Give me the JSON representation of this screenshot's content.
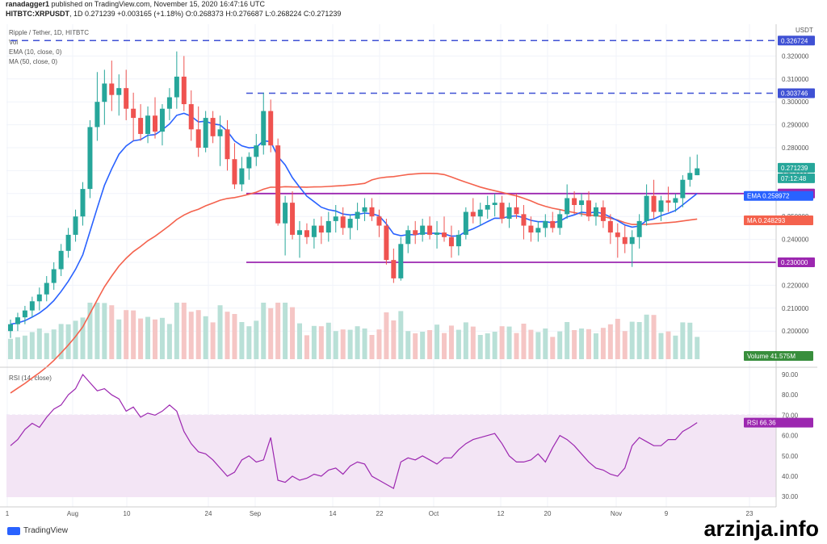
{
  "header": {
    "publisher": "ranadagger1",
    "published_text": "published on TradingView.com, November 15, 2020 16:47:16 UTC",
    "symbol": "HITBTC:XRPUSDT",
    "interval": "1D",
    "last": "0.271239",
    "change": "+0.003165 (+1.18%)",
    "ohlc": {
      "o": "0.268373",
      "h": "0.276687",
      "l": "0.268224",
      "c": "0.271239"
    }
  },
  "legend": {
    "title": "Ripple / Tether, 1D, HITBTC",
    "vol": "Vol",
    "ema": "EMA (10, close, 0)",
    "ma": "MA (50, close, 0)",
    "rsi": "RSI (14, close)"
  },
  "price_axis": {
    "unit": "USDT",
    "ticks": [
      "0.320000",
      "0.310000",
      "0.300000",
      "0.290000",
      "0.280000",
      "0.270000",
      "0.260000",
      "0.250000",
      "0.240000",
      "0.230000",
      "0.220000",
      "0.210000",
      "0.200000"
    ]
  },
  "price_tags": {
    "level_top": "0.326724",
    "level_high": "0.303746",
    "last_price": "0.271239",
    "countdown": "07:12:48",
    "level_resistance": "0.260000",
    "ema_label": "EMA",
    "ema_value": "0.258972",
    "ma_label": "MA",
    "ma_value": "0.248293",
    "level_support": "0.230000",
    "volume_label": "Volume",
    "volume_value": "41.575M"
  },
  "rsi_axis": {
    "ticks": [
      "90.00",
      "80.00",
      "70.00",
      "60.00",
      "50.00",
      "40.00",
      "30.00"
    ]
  },
  "rsi_tag": {
    "label": "RSI",
    "value": "66.36"
  },
  "time_axis": [
    "1",
    "Aug",
    "10",
    "24",
    "Sep",
    "14",
    "22",
    "Oct",
    "12",
    "20",
    "Nov",
    "9",
    "23"
  ],
  "branding": {
    "tradingview": "TradingView",
    "watermark": "arzinja.info"
  },
  "colors": {
    "up": "#26a69a",
    "down": "#ef5350",
    "ema": "#2962ff",
    "ma": "#f4624d",
    "level": "#9c27b0",
    "dashed": "#3f51d4",
    "rsi": "#9c27b0"
  },
  "chart_data": {
    "type": "candlestick",
    "title": "Ripple / Tether, 1D, HITBTC",
    "horizontal_levels": [
      0.326724,
      0.303746,
      0.26,
      0.23
    ],
    "candles": [
      [
        0.2,
        0.205,
        0.197,
        0.203
      ],
      [
        0.203,
        0.208,
        0.2,
        0.206
      ],
      [
        0.206,
        0.211,
        0.203,
        0.209
      ],
      [
        0.209,
        0.215,
        0.206,
        0.213
      ],
      [
        0.213,
        0.219,
        0.209,
        0.216
      ],
      [
        0.216,
        0.224,
        0.213,
        0.221
      ],
      [
        0.221,
        0.23,
        0.218,
        0.227
      ],
      [
        0.227,
        0.238,
        0.224,
        0.235
      ],
      [
        0.235,
        0.245,
        0.232,
        0.242
      ],
      [
        0.242,
        0.253,
        0.239,
        0.25
      ],
      [
        0.25,
        0.265,
        0.246,
        0.262
      ],
      [
        0.262,
        0.292,
        0.258,
        0.289
      ],
      [
        0.289,
        0.313,
        0.283,
        0.3
      ],
      [
        0.3,
        0.314,
        0.29,
        0.308
      ],
      [
        0.308,
        0.318,
        0.296,
        0.303
      ],
      [
        0.303,
        0.312,
        0.294,
        0.306
      ],
      [
        0.306,
        0.314,
        0.292,
        0.297
      ],
      [
        0.297,
        0.304,
        0.283,
        0.293
      ],
      [
        0.293,
        0.299,
        0.283,
        0.286
      ],
      [
        0.286,
        0.298,
        0.282,
        0.294
      ],
      [
        0.294,
        0.302,
        0.284,
        0.287
      ],
      [
        0.287,
        0.299,
        0.281,
        0.297
      ],
      [
        0.297,
        0.306,
        0.292,
        0.302
      ],
      [
        0.302,
        0.322,
        0.297,
        0.311
      ],
      [
        0.311,
        0.32,
        0.296,
        0.299
      ],
      [
        0.299,
        0.305,
        0.283,
        0.288
      ],
      [
        0.288,
        0.298,
        0.276,
        0.28
      ],
      [
        0.28,
        0.296,
        0.278,
        0.293
      ],
      [
        0.293,
        0.296,
        0.282,
        0.285
      ],
      [
        0.285,
        0.294,
        0.272,
        0.288
      ],
      [
        0.288,
        0.292,
        0.27,
        0.275
      ],
      [
        0.275,
        0.282,
        0.262,
        0.264
      ],
      [
        0.264,
        0.276,
        0.261,
        0.271
      ],
      [
        0.271,
        0.278,
        0.266,
        0.276
      ],
      [
        0.276,
        0.286,
        0.272,
        0.281
      ],
      [
        0.281,
        0.304,
        0.277,
        0.296
      ],
      [
        0.296,
        0.301,
        0.278,
        0.281
      ],
      [
        0.281,
        0.284,
        0.246,
        0.247
      ],
      [
        0.247,
        0.259,
        0.233,
        0.256
      ],
      [
        0.256,
        0.261,
        0.24,
        0.242
      ],
      [
        0.242,
        0.248,
        0.232,
        0.244
      ],
      [
        0.244,
        0.247,
        0.238,
        0.241
      ],
      [
        0.241,
        0.249,
        0.236,
        0.246
      ],
      [
        0.246,
        0.25,
        0.238,
        0.243
      ],
      [
        0.243,
        0.252,
        0.239,
        0.248
      ],
      [
        0.248,
        0.255,
        0.243,
        0.25
      ],
      [
        0.25,
        0.254,
        0.242,
        0.245
      ],
      [
        0.245,
        0.251,
        0.24,
        0.249
      ],
      [
        0.249,
        0.256,
        0.244,
        0.252
      ],
      [
        0.252,
        0.258,
        0.248,
        0.254
      ],
      [
        0.254,
        0.258,
        0.248,
        0.25
      ],
      [
        0.25,
        0.253,
        0.241,
        0.246
      ],
      [
        0.246,
        0.249,
        0.229,
        0.231
      ],
      [
        0.231,
        0.236,
        0.221,
        0.223
      ],
      [
        0.223,
        0.241,
        0.222,
        0.238
      ],
      [
        0.238,
        0.246,
        0.234,
        0.244
      ],
      [
        0.244,
        0.248,
        0.238,
        0.242
      ],
      [
        0.242,
        0.249,
        0.239,
        0.246
      ],
      [
        0.246,
        0.25,
        0.24,
        0.242
      ],
      [
        0.242,
        0.248,
        0.236,
        0.243
      ],
      [
        0.243,
        0.25,
        0.239,
        0.241
      ],
      [
        0.241,
        0.246,
        0.232,
        0.237
      ],
      [
        0.237,
        0.244,
        0.233,
        0.242
      ],
      [
        0.242,
        0.254,
        0.24,
        0.252
      ],
      [
        0.252,
        0.258,
        0.247,
        0.25
      ],
      [
        0.25,
        0.256,
        0.246,
        0.253
      ],
      [
        0.253,
        0.259,
        0.249,
        0.255
      ],
      [
        0.255,
        0.26,
        0.25,
        0.256
      ],
      [
        0.256,
        0.259,
        0.247,
        0.249
      ],
      [
        0.249,
        0.256,
        0.245,
        0.254
      ],
      [
        0.254,
        0.26,
        0.249,
        0.251
      ],
      [
        0.251,
        0.255,
        0.24,
        0.246
      ],
      [
        0.246,
        0.25,
        0.239,
        0.243
      ],
      [
        0.243,
        0.248,
        0.239,
        0.245
      ],
      [
        0.245,
        0.251,
        0.241,
        0.248
      ],
      [
        0.248,
        0.252,
        0.243,
        0.245
      ],
      [
        0.245,
        0.253,
        0.242,
        0.251
      ],
      [
        0.251,
        0.264,
        0.249,
        0.258
      ],
      [
        0.258,
        0.261,
        0.251,
        0.255
      ],
      [
        0.255,
        0.26,
        0.25,
        0.257
      ],
      [
        0.257,
        0.261,
        0.248,
        0.25
      ],
      [
        0.25,
        0.256,
        0.246,
        0.254
      ],
      [
        0.254,
        0.257,
        0.245,
        0.248
      ],
      [
        0.248,
        0.251,
        0.238,
        0.243
      ],
      [
        0.243,
        0.247,
        0.232,
        0.241
      ],
      [
        0.241,
        0.246,
        0.234,
        0.238
      ],
      [
        0.238,
        0.244,
        0.228,
        0.241
      ],
      [
        0.241,
        0.251,
        0.236,
        0.248
      ],
      [
        0.248,
        0.264,
        0.246,
        0.259
      ],
      [
        0.259,
        0.266,
        0.249,
        0.252
      ],
      [
        0.252,
        0.259,
        0.248,
        0.257
      ],
      [
        0.257,
        0.263,
        0.252,
        0.256
      ],
      [
        0.256,
        0.26,
        0.252,
        0.258
      ],
      [
        0.258,
        0.268,
        0.254,
        0.266
      ],
      [
        0.266,
        0.276,
        0.263,
        0.269
      ],
      [
        0.268,
        0.277,
        0.268,
        0.271
      ]
    ],
    "rsi": {
      "name": "RSI (14, close)",
      "range": [
        30,
        90
      ],
      "band": [
        30,
        70
      ],
      "values": [
        55,
        58,
        63,
        66,
        64,
        69,
        73,
        75,
        80,
        83,
        90,
        86,
        82,
        83,
        80,
        78,
        72,
        74,
        69,
        71,
        70,
        72,
        75,
        72,
        62,
        56,
        52,
        51,
        48,
        44,
        40,
        42,
        48,
        50,
        47,
        48,
        59,
        38,
        37,
        40,
        38,
        39,
        41,
        40,
        43,
        44,
        41,
        45,
        47,
        46,
        40,
        38,
        36,
        34,
        47,
        49,
        48,
        50,
        48,
        46,
        49,
        49,
        53,
        56,
        58,
        59,
        60,
        61,
        56,
        50,
        47,
        47,
        48,
        51,
        47,
        54,
        60,
        58,
        55,
        51,
        47,
        44,
        43,
        41,
        40,
        44,
        55,
        59,
        57,
        55,
        55,
        58,
        58,
        62,
        64,
        66.36
      ],
      "last": 66.36
    }
  }
}
